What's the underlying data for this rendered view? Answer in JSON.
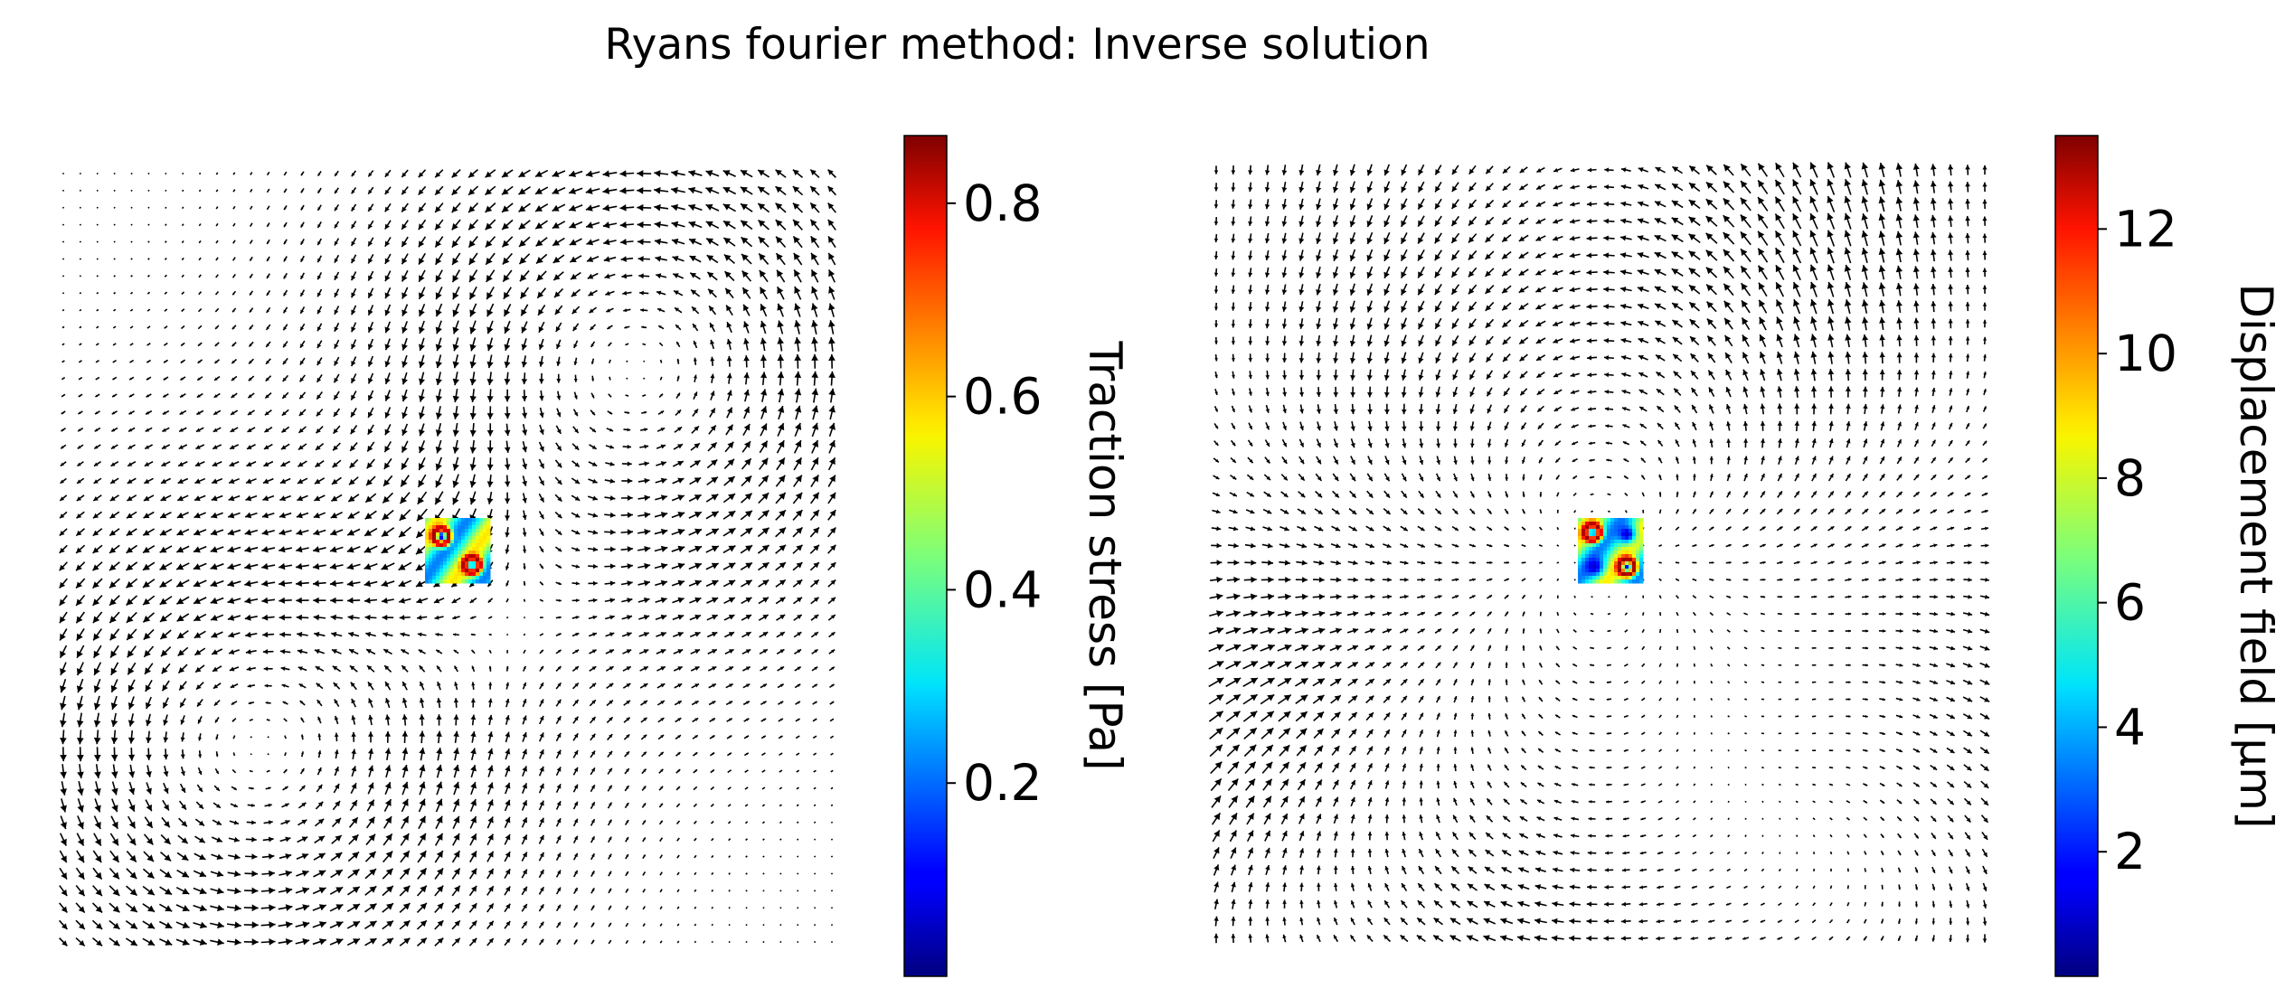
{
  "figure": {
    "title": "Ryans fourier method: Inverse solution"
  },
  "chart_data": [
    {
      "type": "quiver",
      "panel": "left",
      "grid": "off",
      "axes": "off",
      "field": "traction stress vectors around a central patch",
      "vortices": [
        {
          "x": 0.75,
          "y": 0.25,
          "sense": "counter-clockwise"
        },
        {
          "x": 0.25,
          "y": 0.75,
          "sense": "counter-clockwise"
        }
      ],
      "inset_heatmap": {
        "colormap": "jet",
        "hotspots": [
          {
            "x": 0.25,
            "y": 0.28,
            "value": 0.87
          },
          {
            "x": 0.72,
            "y": 0.72,
            "value": 0.87
          }
        ]
      },
      "colorbar": {
        "label": "Traction stress [Pa]",
        "colormap": "jet",
        "range": [
          0.0,
          0.87
        ],
        "ticks": [
          "0.2",
          "0.4",
          "0.6",
          "0.8"
        ],
        "tick_values": [
          0.2,
          0.4,
          0.6,
          0.8
        ]
      }
    },
    {
      "type": "quiver",
      "panel": "right",
      "grid": "off",
      "axes": "off",
      "field": "displacement vectors, quadrupole pattern",
      "inset_heatmap": {
        "colormap": "jet",
        "hotspots": [
          {
            "x": 0.22,
            "y": 0.22,
            "value": 13.5
          },
          {
            "x": 0.75,
            "y": 0.75,
            "value": 13.5
          },
          {
            "x": 0.75,
            "y": 0.25,
            "value": 1.0
          },
          {
            "x": 0.25,
            "y": 0.75,
            "value": 1.0
          }
        ]
      },
      "colorbar": {
        "label": "Displacement field [μm]",
        "colormap": "jet",
        "range": [
          0.0,
          13.5
        ],
        "ticks": [
          "2",
          "4",
          "6",
          "8",
          "10",
          "12"
        ],
        "tick_values": [
          2,
          4,
          6,
          8,
          10,
          12
        ]
      }
    }
  ]
}
